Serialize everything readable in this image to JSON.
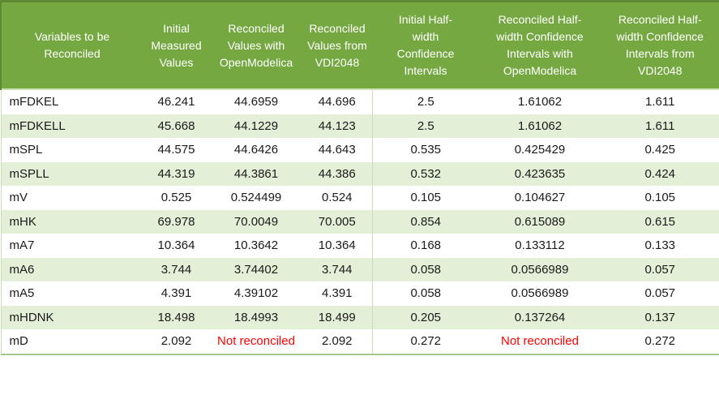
{
  "colors": {
    "header_green": "#76A842",
    "dark_green_border": "#5D8A33",
    "band_green": "#E4EFD8",
    "light_border": "#C9E0B4",
    "bottom_border": "#A6C88D",
    "red": "#FF0000",
    "header_text": "#FFFFFF",
    "body_text": "#1A1A1A"
  },
  "table": {
    "columns": [
      {
        "label": "Variables to be\nReconciled"
      },
      {
        "label": "Initial\nMeasured\nValues"
      },
      {
        "label": "Reconciled\nValues with\nOpenModelica"
      },
      {
        "label": "Reconciled\nValues from\nVDI2048"
      },
      {
        "label": "Initial Half-\nwidth\nConfidence\nIntervals"
      },
      {
        "label": "Reconciled Half-\nwidth Confidence\nIntervals with\nOpenModelica"
      },
      {
        "label": "Reconciled Half-\nwidth Confidence\nIntervals from\nVDI2048"
      }
    ],
    "rows": [
      {
        "variable": "mFDKEL",
        "values": [
          "46.241",
          "44.6959",
          "44.696",
          "2.5",
          "1.61062",
          "1.611"
        ]
      },
      {
        "variable": "mFDKELL",
        "values": [
          "45.668",
          "44.1229",
          "44.123",
          "2.5",
          "1.61062",
          "1.611"
        ]
      },
      {
        "variable": "mSPL",
        "values": [
          "44.575",
          "44.6426",
          "44.643",
          "0.535",
          "0.425429",
          "0.425"
        ]
      },
      {
        "variable": "mSPLL",
        "values": [
          "44.319",
          "44.3861",
          "44.386",
          "0.532",
          "0.423635",
          "0.424"
        ]
      },
      {
        "variable": "mV",
        "values": [
          "0.525",
          "0.524499",
          "0.524",
          "0.105",
          "0.104627",
          "0.105"
        ]
      },
      {
        "variable": "mHK",
        "values": [
          "69.978",
          "70.0049",
          "70.005",
          "0.854",
          "0.615089",
          "0.615"
        ]
      },
      {
        "variable": "mA7",
        "values": [
          "10.364",
          "10.3642",
          "10.364",
          "0.168",
          "0.133112",
          "0.133"
        ]
      },
      {
        "variable": "mA6",
        "values": [
          "3.744",
          "3.74402",
          "3.744",
          "0.058",
          "0.0566989",
          "0.057"
        ]
      },
      {
        "variable": "mA5",
        "values": [
          "4.391",
          "4.39102",
          "4.391",
          "0.058",
          "0.0566989",
          "0.057"
        ]
      },
      {
        "variable": "mHDNK",
        "values": [
          "18.498",
          "18.4993",
          "18.499",
          "0.205",
          "0.137264",
          "0.137"
        ]
      },
      {
        "variable": "mD",
        "values": [
          "2.092",
          "Not reconciled",
          "2.092",
          "0.272",
          "Not reconciled",
          "0.272"
        ],
        "red_cells": [
          1,
          4
        ]
      }
    ]
  }
}
